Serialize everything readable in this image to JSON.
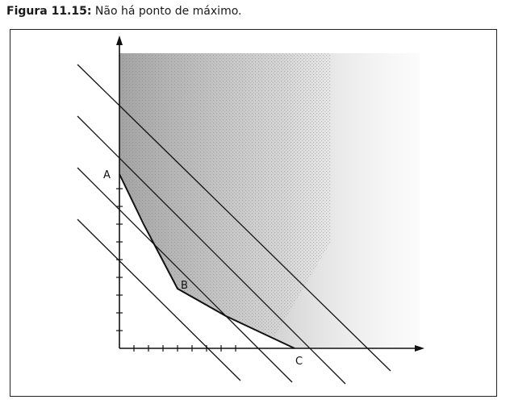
{
  "caption": {
    "label": "Figura 11.15:",
    "text": "Não há ponto de máximo."
  },
  "points": {
    "A": "A",
    "B": "B",
    "C": "C"
  },
  "colors": {
    "ink": "#111111",
    "region": "#bdbdbd"
  }
}
